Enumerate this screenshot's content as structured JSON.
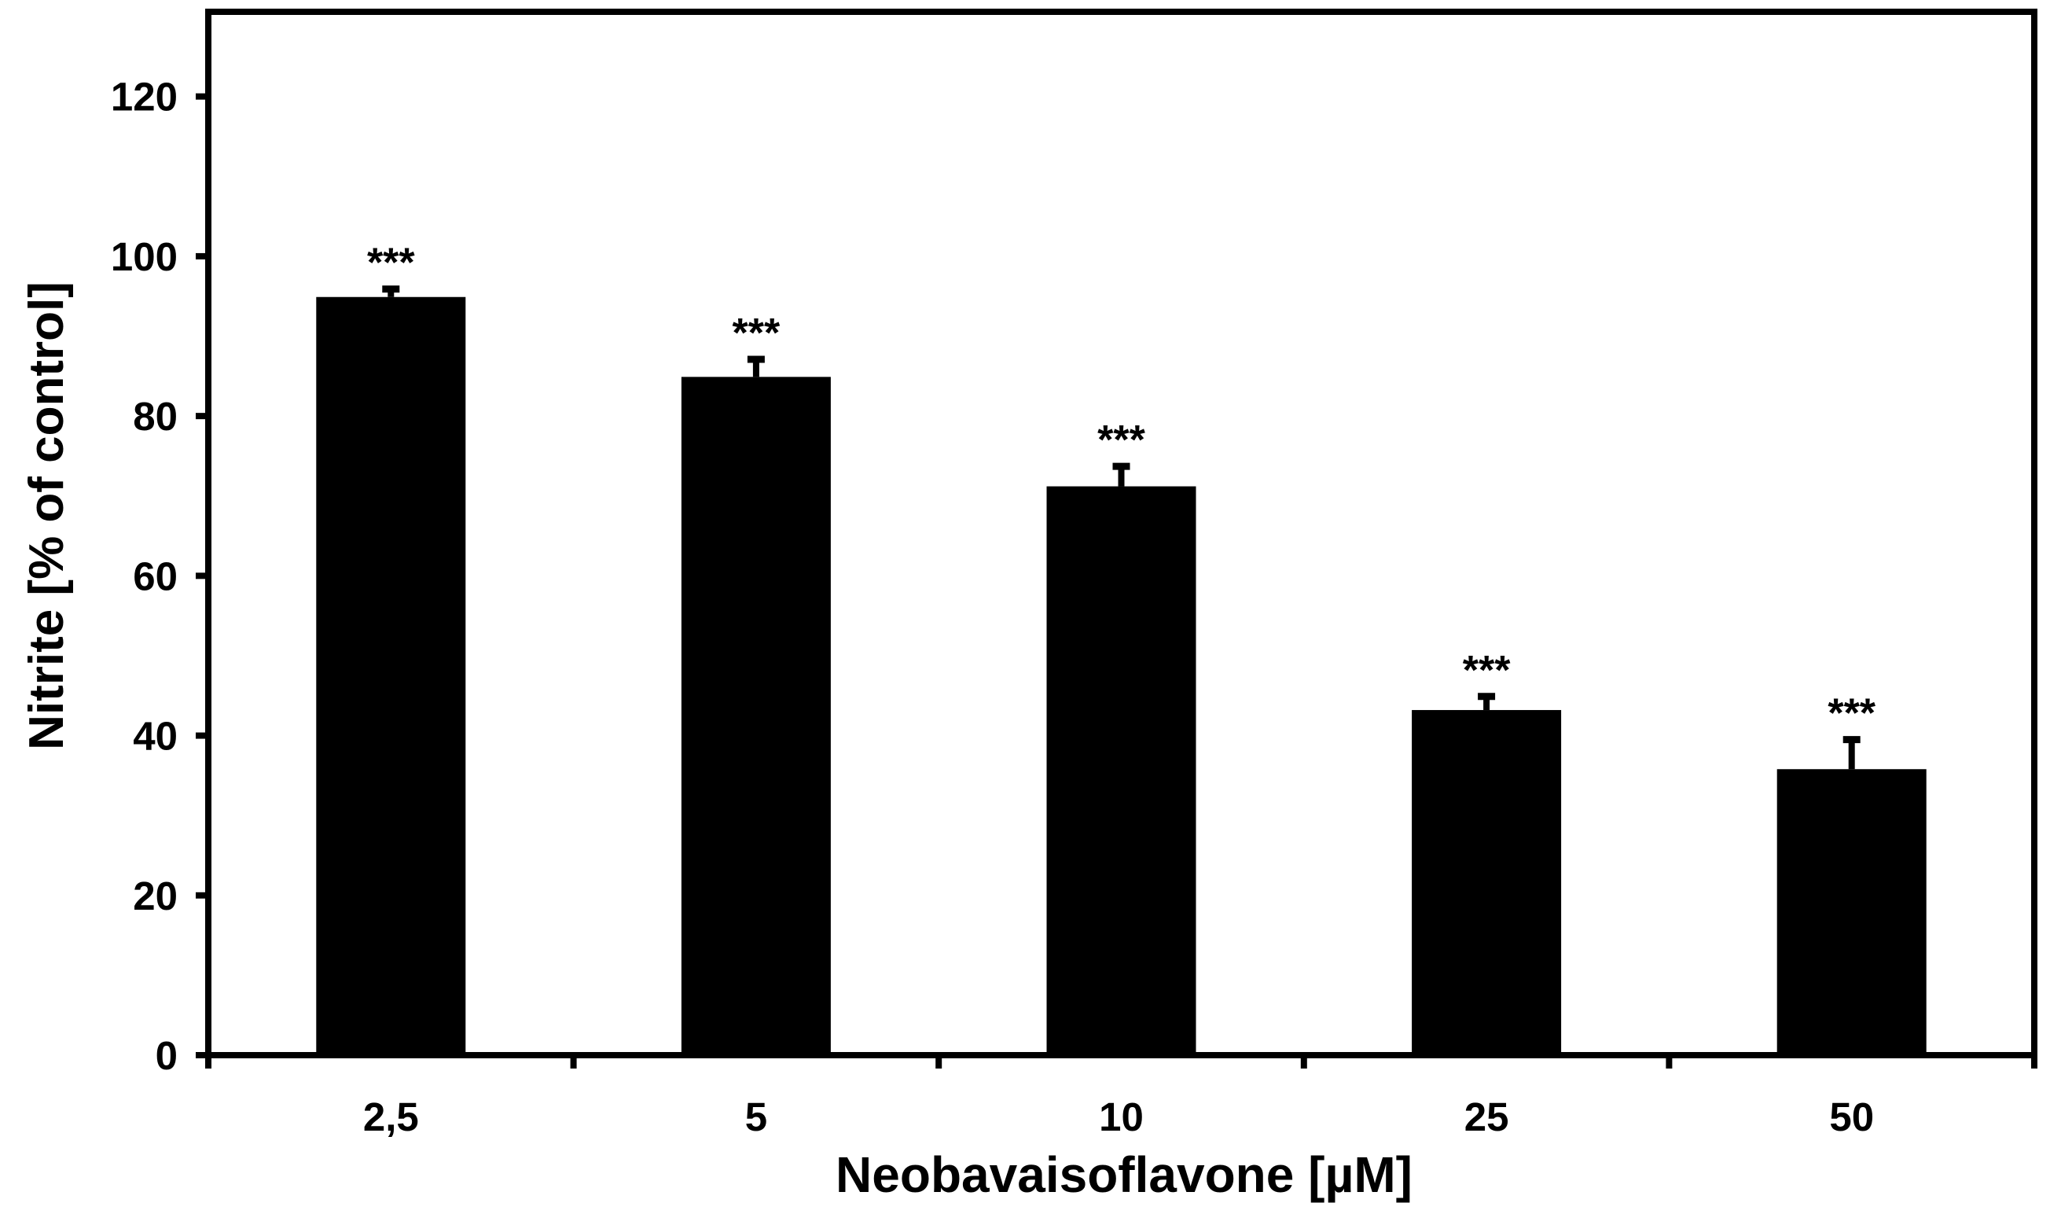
{
  "chart_data": {
    "type": "bar",
    "title": "",
    "xlabel": "Neobavaisoflavone [µM]",
    "ylabel": "Nitrite [% of control]",
    "categories": [
      "2,5",
      "5",
      "10",
      "25",
      "50"
    ],
    "values": [
      94.9,
      84.9,
      71.2,
      43.2,
      35.8
    ],
    "errors_plus": [
      1.0,
      2.2,
      2.5,
      1.7,
      3.7
    ],
    "significance": [
      "***",
      "***",
      "***",
      "***",
      "***"
    ],
    "ylim": [
      0,
      130.6
    ],
    "yticks": [
      0,
      20,
      40,
      60,
      80,
      100,
      120
    ],
    "ytick_labels": [
      "0",
      "20",
      "40",
      "60",
      "80",
      "100",
      "120"
    ],
    "bar_color": "#000000",
    "axis_color": "#000000",
    "background_color": "#ffffff",
    "grid": false,
    "legend": false,
    "framed_plot_area": true,
    "error_bars": "upper caps only"
  }
}
